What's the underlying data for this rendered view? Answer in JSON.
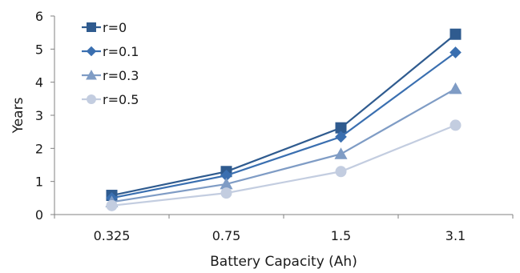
{
  "chart_data": {
    "type": "line",
    "categories": [
      "0.325",
      "0.75",
      "1.5",
      "3.1"
    ],
    "xlabel": "Battery Capacity (Ah)",
    "ylabel": "Years",
    "ylim": [
      0,
      6
    ],
    "yticks": [
      0,
      1,
      2,
      3,
      4,
      5,
      6
    ],
    "grid": false,
    "legend_position": "top-left",
    "series": [
      {
        "name": "r=0",
        "values": [
          0.58,
          1.3,
          2.62,
          5.45
        ],
        "color": "#2f5b8f",
        "marker": "square"
      },
      {
        "name": "r=0.1",
        "values": [
          0.5,
          1.18,
          2.35,
          4.9
        ],
        "color": "#3a6fb0",
        "marker": "diamond"
      },
      {
        "name": "r=0.3",
        "values": [
          0.38,
          0.92,
          1.83,
          3.8
        ],
        "color": "#7f9cc5",
        "marker": "triangle"
      },
      {
        "name": "r=0.5",
        "values": [
          0.27,
          0.65,
          1.3,
          2.7
        ],
        "color": "#c3cde0",
        "marker": "circle"
      }
    ]
  }
}
